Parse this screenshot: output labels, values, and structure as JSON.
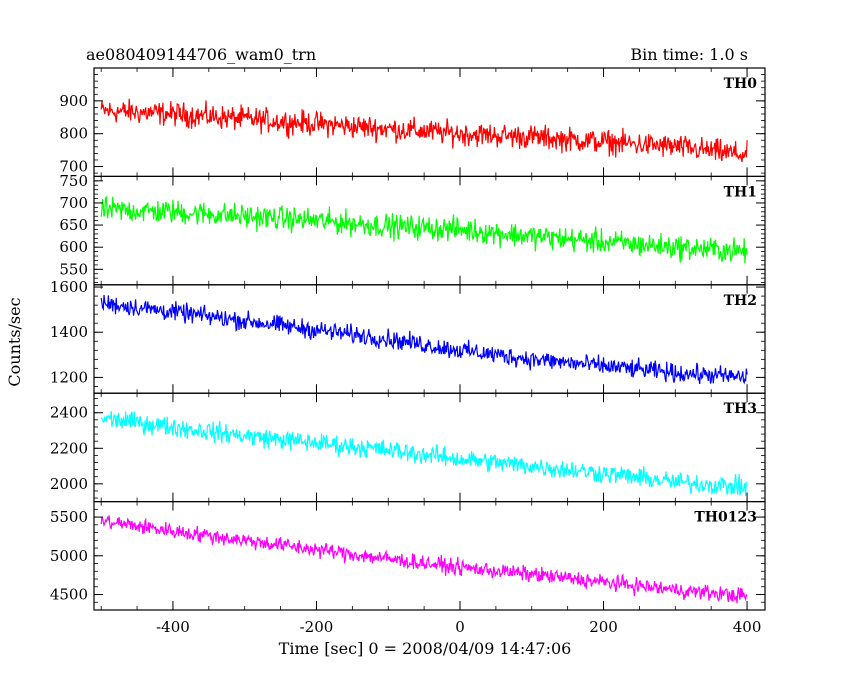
{
  "header": {
    "title": "ae080409144706_wam0_trn",
    "bin_time": "Bin time: 1.0 s"
  },
  "chart_data": {
    "type": "line",
    "xlabel": "Time [sec] 0 = 2008/04/09 14:47:06",
    "ylabel": "Counts/sec",
    "xlim": [
      -510,
      425
    ],
    "xticks": [
      -400,
      -200,
      0,
      200,
      400
    ],
    "panels": [
      {
        "name": "TH0",
        "color": "#ff0000",
        "ylim": [
          670,
          1000
        ],
        "yticks": [
          700,
          800,
          900
        ],
        "trend_x": [
          -500,
          -400,
          -300,
          -200,
          -100,
          0,
          100,
          200,
          300,
          400
        ],
        "trend_y": [
          870,
          860,
          845,
          830,
          815,
          800,
          790,
          775,
          760,
          735
        ],
        "noise_amplitude": 40
      },
      {
        "name": "TH1",
        "color": "#00ff00",
        "ylim": [
          515,
          760
        ],
        "yticks": [
          550,
          600,
          650,
          700,
          750
        ],
        "trend_x": [
          -500,
          -400,
          -300,
          -200,
          -100,
          0,
          100,
          200,
          300,
          400
        ],
        "trend_y": [
          685,
          680,
          670,
          660,
          648,
          640,
          625,
          612,
          600,
          590
        ],
        "noise_amplitude": 30
      },
      {
        "name": "TH2",
        "color": "#0000ff",
        "ylim": [
          1130,
          1610
        ],
        "yticks": [
          1200,
          1400,
          1600
        ],
        "trend_x": [
          -500,
          -400,
          -300,
          -200,
          -100,
          0,
          100,
          200,
          300,
          400
        ],
        "trend_y": [
          1530,
          1490,
          1450,
          1410,
          1370,
          1320,
          1280,
          1250,
          1220,
          1200
        ],
        "noise_amplitude": 45
      },
      {
        "name": "TH3",
        "color": "#00ffff",
        "ylim": [
          1900,
          2510
        ],
        "yticks": [
          2000,
          2200,
          2400
        ],
        "trend_x": [
          -500,
          -400,
          -300,
          -200,
          -100,
          0,
          100,
          200,
          300,
          400
        ],
        "trend_y": [
          2370,
          2320,
          2270,
          2230,
          2190,
          2140,
          2100,
          2060,
          2010,
          1980
        ],
        "noise_amplitude": 60
      },
      {
        "name": "TH0123",
        "color": "#ff00ff",
        "ylim": [
          4300,
          5700
        ],
        "yticks": [
          4500,
          5000,
          5500
        ],
        "trend_x": [
          -500,
          -400,
          -300,
          -200,
          -100,
          0,
          100,
          200,
          300,
          400
        ],
        "trend_y": [
          5450,
          5320,
          5200,
          5080,
          4960,
          4850,
          4760,
          4660,
          4560,
          4480
        ],
        "noise_amplitude": 110
      }
    ]
  }
}
